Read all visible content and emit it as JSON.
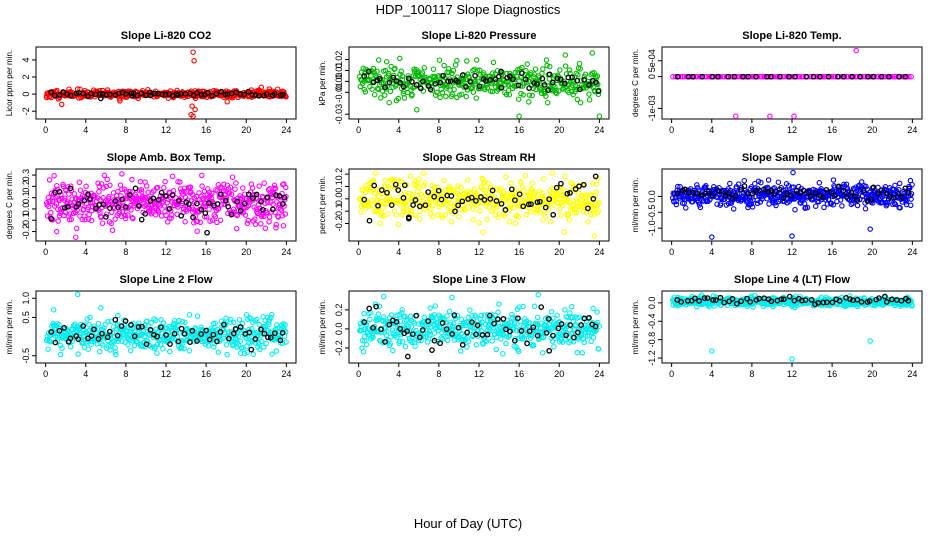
{
  "figure": {
    "title": "HDP_100117  Slope Diagnostics",
    "xlabel": "Hour of Day (UTC)"
  },
  "chart_data": [
    {
      "type": "scatter",
      "title": "Slope Li-820 CO2",
      "ylabel": "Licor ppm per min.",
      "xlim": [
        0,
        24
      ],
      "xticks": [
        "0",
        "4",
        "8",
        "12",
        "16",
        "20",
        "24"
      ],
      "ylim": [
        -2.6,
        5.2
      ],
      "yticks": [
        {
          "v": -2,
          "label": "-2"
        },
        {
          "v": 0,
          "label": "0"
        },
        {
          "v": 2,
          "label": "2"
        },
        {
          "v": 4,
          "label": "4"
        }
      ],
      "colors": {
        "main": "#ff0000",
        "highlight": "#000000"
      },
      "series": [
        {
          "values": [
            [
              0.1,
              -0.4
            ],
            [
              1.6,
              -1.2
            ],
            [
              14.7,
              4.9
            ],
            [
              14.8,
              3.9
            ],
            [
              14.6,
              -1.4
            ],
            [
              14.5,
              -2.4
            ],
            [
              14.9,
              -1.8
            ],
            [
              14.7,
              -2.6
            ],
            [
              3.2,
              0.6
            ],
            [
              7.4,
              -0.8
            ],
            [
              21.5,
              0.8
            ],
            [
              22.3,
              0.6
            ],
            [
              18.1,
              -0.9
            ],
            [
              10.2,
              0.5
            ]
          ],
          "noise": {
            "count": 430,
            "center": 0.0,
            "spread": 0.22,
            "x_from": 0.1,
            "x_to": 24,
            "seed": 11
          }
        },
        {
          "values": [
            [
              5.5,
              -0.5
            ],
            [
              8.6,
              -0.2
            ],
            [
              10.4,
              0.2
            ],
            [
              13.2,
              -0.1
            ]
          ],
          "noise": {
            "count": 60,
            "center": 0.0,
            "spread": 0.15,
            "x_from": 0.5,
            "x_to": 24,
            "seed": 12
          }
        }
      ]
    },
    {
      "type": "scatter",
      "title": "Slope Li-820 Pressure",
      "ylabel": "kPa per min.",
      "xlim": [
        0,
        24
      ],
      "xticks": [
        "0",
        "4",
        "8",
        "12",
        "16",
        "20",
        "24"
      ],
      "ylim": [
        -0.032,
        0.029
      ],
      "yticks": [
        {
          "v": -0.03,
          "label": "-0.03"
        },
        {
          "v": -0.01,
          "label": "-0.01"
        },
        {
          "v": 0.0,
          "label": "0.00"
        },
        {
          "v": 0.01,
          "label": "0.01"
        },
        {
          "v": 0.02,
          "label": "0.02"
        }
      ],
      "colors": {
        "main": "#00bb00",
        "highlight": "#000000"
      },
      "series": [
        {
          "values": [
            [
              5.8,
              -0.026
            ],
            [
              16.0,
              -0.032
            ],
            [
              24.0,
              -0.032
            ],
            [
              23.3,
              0.026
            ],
            [
              4.1,
              0.021
            ],
            [
              20.6,
              0.024
            ],
            [
              2.8,
              0.018
            ],
            [
              9.8,
              0.019
            ]
          ],
          "noise": {
            "count": 430,
            "center": 0.0,
            "spread": 0.0075,
            "x_from": 0.1,
            "x_to": 24,
            "seed": 21
          }
        },
        {
          "values": [
            [
              14.2,
              0.009
            ],
            [
              23.9,
              -0.009
            ],
            [
              18.9,
              -0.008
            ]
          ],
          "noise": {
            "count": 60,
            "center": 0.0,
            "spread": 0.004,
            "x_from": 0.5,
            "x_to": 24,
            "seed": 22
          }
        }
      ]
    },
    {
      "type": "scatter",
      "title": "Slope Li-820 Temp.",
      "ylabel": "degrees C per min.",
      "xlim": [
        0,
        24
      ],
      "xticks": [
        "0",
        "4",
        "8",
        "12",
        "16",
        "20",
        "24"
      ],
      "ylim": [
        -0.00125,
        0.00085
      ],
      "yticks": [
        {
          "v": -0.001,
          "label": "-1e-03"
        },
        {
          "v": 0.0,
          "label": "0"
        },
        {
          "v": 0.0005,
          "label": "5e-04"
        }
      ],
      "colors": {
        "main": "#ff00ff",
        "highlight": "#000000"
      },
      "series": [
        {
          "values": [
            [
              18.4,
              0.00082
            ],
            [
              6.4,
              -0.00125
            ],
            [
              9.8,
              -0.00125
            ],
            [
              12.2,
              -0.00125
            ]
          ],
          "noise": {
            "count": 130,
            "center": 0.0,
            "spread": 0.0,
            "x_from": 0.1,
            "x_to": 24,
            "seed": 31
          }
        },
        {
          "values": [],
          "noise": {
            "count": 30,
            "center": 0.0,
            "spread": 0.0,
            "x_from": 0.5,
            "x_to": 24,
            "seed": 32
          }
        }
      ]
    },
    {
      "type": "scatter",
      "title": "Slope Amb. Box Temp.",
      "ylabel": "degrees C per min.",
      "xlim": [
        0,
        24
      ],
      "xticks": [
        "0",
        "4",
        "8",
        "12",
        "16",
        "20",
        "24"
      ],
      "ylim": [
        -0.26,
        0.33
      ],
      "yticks": [
        {
          "v": -0.2,
          "label": "-0.2"
        },
        {
          "v": -0.1,
          "label": "-0.1"
        },
        {
          "v": 0.0,
          "label": "0.0"
        },
        {
          "v": 0.1,
          "label": "0.1"
        },
        {
          "v": 0.2,
          "label": "0.2"
        },
        {
          "v": 0.3,
          "label": "0.3"
        }
      ],
      "colors": {
        "main": "#ff00ff",
        "highlight": "#000000"
      },
      "series": [
        {
          "values": [
            [
              7.6,
              0.31
            ],
            [
              3.0,
              -0.25
            ],
            [
              1.1,
              -0.2
            ],
            [
              8.6,
              0.26
            ],
            [
              13.2,
              0.24
            ]
          ],
          "noise": {
            "count": 520,
            "center": 0.05,
            "spread": 0.095,
            "x_from": 0.1,
            "x_to": 24,
            "seed": 41
          }
        },
        {
          "values": [
            [
              16.1,
              -0.21
            ],
            [
              23.8,
              0.1
            ]
          ],
          "noise": {
            "count": 60,
            "center": 0.05,
            "spread": 0.07,
            "x_from": 0.5,
            "x_to": 24,
            "seed": 42
          }
        }
      ]
    },
    {
      "type": "scatter",
      "title": "Slope Gas Stream RH",
      "ylabel": "percent per min.",
      "xlim": [
        0,
        24
      ],
      "xticks": [
        "0",
        "4",
        "8",
        "12",
        "16",
        "20",
        "24"
      ],
      "ylim": [
        -0.32,
        0.22
      ],
      "yticks": [
        {
          "v": -0.2,
          "label": "-0.2"
        },
        {
          "v": -0.1,
          "label": "-0.1"
        },
        {
          "v": 0.0,
          "label": "0.0"
        },
        {
          "v": 0.1,
          "label": "0.1"
        },
        {
          "v": 0.2,
          "label": "0.2"
        }
      ],
      "colors": {
        "main": "#ffff00",
        "highlight": "#000000"
      },
      "series": [
        {
          "values": [
            [
              23.5,
              -0.3
            ],
            [
              20.5,
              -0.27
            ],
            [
              12.4,
              -0.27
            ]
          ],
          "noise": {
            "count": 520,
            "center": 0.0,
            "spread": 0.08,
            "x_from": 0.1,
            "x_to": 24,
            "seed": 51
          }
        },
        {
          "values": [
            [
              5.0,
              -0.16
            ],
            [
              4.6,
              0.11
            ]
          ],
          "noise": {
            "count": 55,
            "center": 0.0,
            "spread": 0.07,
            "x_from": 0.5,
            "x_to": 24,
            "seed": 52
          }
        }
      ]
    },
    {
      "type": "scatter",
      "title": "Slope Sample Flow",
      "ylabel": "ml/min per min.",
      "xlim": [
        0,
        24
      ],
      "xticks": [
        "0",
        "4",
        "8",
        "12",
        "16",
        "20",
        "24"
      ],
      "ylim": [
        -1.32,
        0.78
      ],
      "yticks": [
        {
          "v": -1.0,
          "label": "-1.0"
        },
        {
          "v": -0.5,
          "label": "-0.5"
        },
        {
          "v": 0.0,
          "label": "0.0"
        }
      ],
      "colors": {
        "main": "#0000ff",
        "highlight": "#000000"
      },
      "series": [
        {
          "values": [
            [
              4.0,
              -1.28
            ],
            [
              12.0,
              -1.25
            ],
            [
              12.1,
              0.75
            ],
            [
              19.8,
              -1.03
            ],
            [
              23.8,
              0.5
            ]
          ],
          "noise": {
            "count": 520,
            "center": 0.05,
            "spread": 0.18,
            "x_from": 0.1,
            "x_to": 24,
            "seed": 61
          }
        },
        {
          "values": [],
          "noise": {
            "count": 60,
            "center": 0.1,
            "spread": 0.1,
            "x_from": 0.5,
            "x_to": 24,
            "seed": 62
          }
        }
      ]
    },
    {
      "type": "scatter",
      "title": "Slope Line 2 Flow",
      "ylabel": "ml/min per min.",
      "xlim": [
        0,
        24
      ],
      "xticks": [
        "0",
        "4",
        "8",
        "12",
        "16",
        "20",
        "24"
      ],
      "ylim": [
        -0.62,
        1.12
      ],
      "yticks": [
        {
          "v": -0.5,
          "label": "-0.5"
        },
        {
          "v": 0.5,
          "label": "0.5"
        },
        {
          "v": 1.0,
          "label": "1.0"
        }
      ],
      "colors": {
        "main": "#00eeee",
        "highlight": "#000000"
      },
      "series": [
        {
          "values": [
            [
              3.2,
              1.1
            ],
            [
              5.5,
              0.75
            ],
            [
              7.2,
              0.55
            ],
            [
              0.8,
              0.7
            ]
          ],
          "noise": {
            "count": 520,
            "center": 0.05,
            "spread": 0.2,
            "x_from": 0.1,
            "x_to": 24,
            "seed": 71
          }
        },
        {
          "values": [],
          "noise": {
            "count": 60,
            "center": 0.05,
            "spread": 0.15,
            "x_from": 0.5,
            "x_to": 24,
            "seed": 72
          }
        }
      ]
    },
    {
      "type": "scatter",
      "title": "Slope Line 3 Flow",
      "ylabel": "ml/min per min.",
      "xlim": [
        0,
        24
      ],
      "xticks": [
        "0",
        "4",
        "8",
        "12",
        "16",
        "20",
        "24"
      ],
      "ylim": [
        -0.33,
        0.37
      ],
      "yticks": [
        {
          "v": -0.2,
          "label": "-0.2"
        },
        {
          "v": 0.0,
          "label": "0.0"
        },
        {
          "v": 0.2,
          "label": "0.2"
        }
      ],
      "colors": {
        "main": "#00eeee",
        "highlight": "#000000"
      },
      "series": [
        {
          "values": [
            [
              17.9,
              0.36
            ],
            [
              2.5,
              0.34
            ],
            [
              9.3,
              0.33
            ]
          ],
          "noise": {
            "count": 520,
            "center": 0.0,
            "spread": 0.1,
            "x_from": 0.1,
            "x_to": 24,
            "seed": 81
          }
        },
        {
          "values": [
            [
              4.9,
              -0.29
            ],
            [
              19.0,
              -0.23
            ]
          ],
          "noise": {
            "count": 60,
            "center": 0.0,
            "spread": 0.09,
            "x_from": 0.5,
            "x_to": 24,
            "seed": 82
          }
        }
      ]
    },
    {
      "type": "scatter",
      "title": "Slope Line 4 (LT) Flow",
      "ylabel": "ml/min per min.",
      "xlim": [
        0,
        24
      ],
      "xticks": [
        "0",
        "4",
        "8",
        "12",
        "16",
        "20",
        "24"
      ],
      "ylim": [
        -1.25,
        0.2
      ],
      "yticks": [
        {
          "v": -1.2,
          "label": "-1.2"
        },
        {
          "v": -0.8,
          "label": "-0.8"
        },
        {
          "v": -0.4,
          "label": "-0.4"
        },
        {
          "v": 0.0,
          "label": "0.0"
        }
      ],
      "colors": {
        "main": "#00eeee",
        "highlight": "#000000"
      },
      "series": [
        {
          "values": [
            [
              4.0,
              -1.05
            ],
            [
              12.0,
              -1.22
            ],
            [
              19.8,
              -0.83
            ],
            [
              8.3,
              0.16
            ],
            [
              3.0,
              0.17
            ]
          ],
          "noise": {
            "count": 500,
            "center": 0.02,
            "spread": 0.05,
            "x_from": 0.1,
            "x_to": 24,
            "seed": 91
          }
        },
        {
          "values": [],
          "noise": {
            "count": 55,
            "center": 0.05,
            "spread": 0.04,
            "x_from": 0.5,
            "x_to": 24,
            "seed": 92
          }
        }
      ]
    }
  ]
}
